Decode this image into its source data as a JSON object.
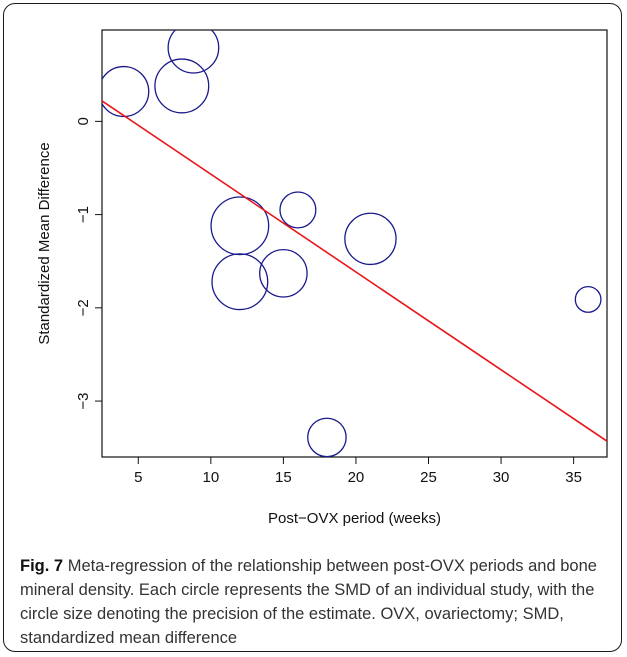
{
  "chart_data": {
    "type": "scatter",
    "title": "",
    "xlabel": "Post−OVX period (weeks)",
    "ylabel": "Standardized Mean Difference",
    "xlim": [
      2.5,
      37.3
    ],
    "ylim": [
      -3.6,
      0.98
    ],
    "xticks": [
      5,
      10,
      15,
      20,
      25,
      30,
      35
    ],
    "yticks": [
      -3,
      -2,
      -1,
      0
    ],
    "xtick_labels": [
      "5",
      "10",
      "15",
      "20",
      "25",
      "30",
      "35"
    ],
    "ytick_labels": [
      "−3",
      "−2",
      "−1",
      "0"
    ],
    "points": [
      {
        "x": 4,
        "y": 0.32,
        "precision": 0.78
      },
      {
        "x": 8,
        "y": 0.38,
        "precision": 0.84
      },
      {
        "x": 8.8,
        "y": 0.79,
        "precision": 0.79
      },
      {
        "x": 12,
        "y": -1.12,
        "precision": 0.9
      },
      {
        "x": 12,
        "y": -1.72,
        "precision": 0.87
      },
      {
        "x": 15,
        "y": -1.63,
        "precision": 0.74
      },
      {
        "x": 16,
        "y": -0.95,
        "precision": 0.56
      },
      {
        "x": 18,
        "y": -3.39,
        "precision": 0.6
      },
      {
        "x": 21,
        "y": -1.26,
        "precision": 0.8
      },
      {
        "x": 36,
        "y": -1.91,
        "precision": 0.4
      }
    ],
    "regression_line": {
      "x": [
        2.5,
        37.3
      ],
      "y": [
        0.22,
        -3.43
      ]
    },
    "colors": {
      "points": "#1a1a8c",
      "line": "#e8161b",
      "axis": "#111111"
    },
    "grid": false,
    "legend": "none"
  },
  "caption": {
    "label": "Fig.",
    "number": "7",
    "text": " Meta-regression of the relationship between post-OVX periods and bone mineral density. Each circle represents the SMD of an individual study, with the circle size denoting the precision of the estimate. OVX, ovariectomy; SMD, standardized mean difference"
  }
}
